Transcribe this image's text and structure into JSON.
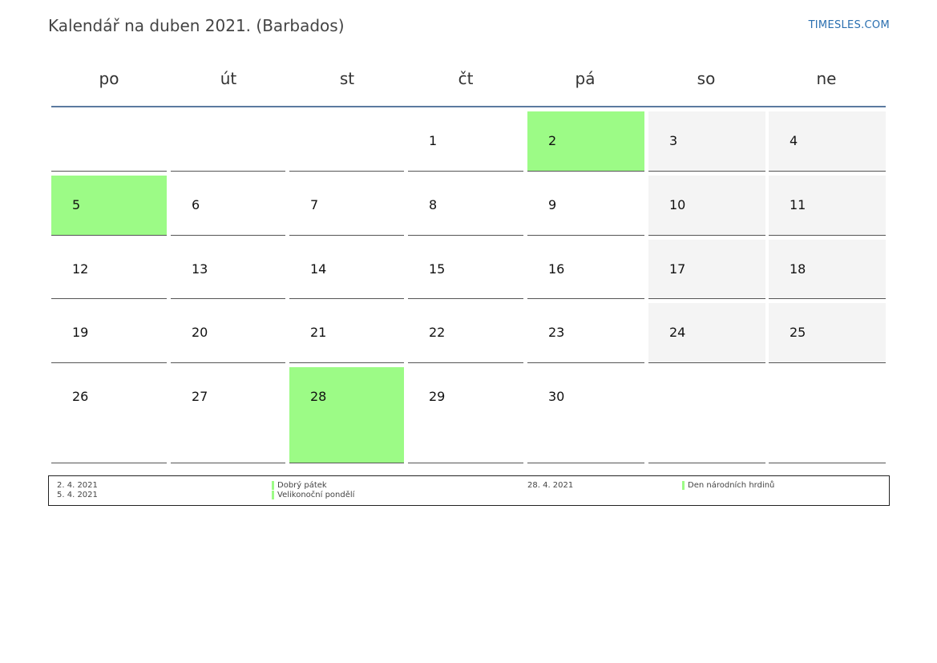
{
  "header": {
    "title": "Kalendář na duben 2021. (Barbados)",
    "brand": "TIMESLES.COM"
  },
  "weekdays": [
    "po",
    "út",
    "st",
    "čt",
    "pá",
    "so",
    "ne"
  ],
  "colors": {
    "holiday": "#9cfb86",
    "weekend": "#f4f4f4",
    "header_rule": "#5b7aa0",
    "brand": "#2a6fb0"
  },
  "calendar": {
    "weeks": [
      [
        "",
        "",
        "",
        "1",
        "2",
        "3",
        "4"
      ],
      [
        "5",
        "6",
        "7",
        "8",
        "9",
        "10",
        "11"
      ],
      [
        "12",
        "13",
        "14",
        "15",
        "16",
        "17",
        "18"
      ],
      [
        "19",
        "20",
        "21",
        "22",
        "23",
        "24",
        "25"
      ],
      [
        "26",
        "27",
        "28",
        "29",
        "30",
        "",
        ""
      ]
    ],
    "holiday_days": [
      "2",
      "5",
      "28"
    ]
  },
  "legend": {
    "left": [
      {
        "date": "2. 4. 2021",
        "name": "Dobrý pátek"
      },
      {
        "date": "5. 4. 2021",
        "name": "Velikonoční pondělí"
      }
    ],
    "right": [
      {
        "date": "28. 4. 2021",
        "name": "Den národních hrdinů"
      }
    ]
  }
}
